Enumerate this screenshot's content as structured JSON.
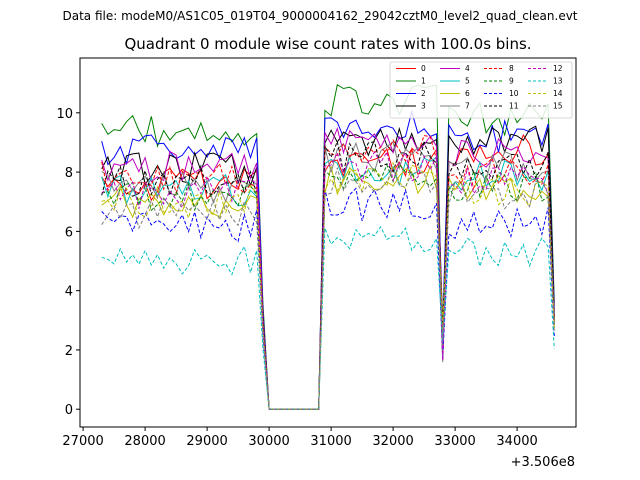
{
  "figure": {
    "suptitle": "Data file: modeM0/AS1C05_019T04_9000004162_29042cztM0_level2_quad_clean.evt"
  },
  "chart_data": {
    "type": "line",
    "title": "Quadrant 0 module wise count rates with 100.0s bins.",
    "xlabel": "",
    "ylabel": "",
    "x_offset_label": "+3.506e8",
    "xlim": [
      26950,
      34950
    ],
    "ylim": [
      -0.6,
      11.85
    ],
    "xticks": [
      27000,
      28000,
      29000,
      30000,
      31000,
      32000,
      33000,
      34000
    ],
    "yticks": [
      0,
      2,
      4,
      6,
      8,
      10
    ],
    "legend_position": "top-right",
    "gti_segments": [
      {
        "start": 27300,
        "end": 29800,
        "step": 100
      },
      {
        "start": 30900,
        "end": 32700,
        "step": 100
      },
      {
        "start": 32900,
        "end": 34500,
        "step": 100
      }
    ],
    "gap_points": [
      {
        "x": 29900,
        "kind": "drop"
      },
      {
        "x": 30000,
        "kind": "zero"
      },
      {
        "x": 30100,
        "kind": "zero"
      },
      {
        "x": 30200,
        "kind": "zero"
      },
      {
        "x": 30300,
        "kind": "zero"
      },
      {
        "x": 30400,
        "kind": "zero"
      },
      {
        "x": 30500,
        "kind": "zero"
      },
      {
        "x": 30600,
        "kind": "zero"
      },
      {
        "x": 30700,
        "kind": "zero"
      },
      {
        "x": 30800,
        "kind": "zero"
      },
      {
        "x": 32800,
        "kind": "dip"
      },
      {
        "x": 34600,
        "kind": "drop"
      }
    ],
    "series": [
      {
        "name": "0",
        "color": "#ff0000",
        "dash": "solid",
        "levels": [
          7.6,
          8.4,
          8.7
        ]
      },
      {
        "name": "1",
        "color": "#008000",
        "dash": "solid",
        "levels": [
          9.4,
          10.4,
          9.8
        ]
      },
      {
        "name": "2",
        "color": "#0000ff",
        "dash": "solid",
        "levels": [
          8.8,
          9.6,
          9.2
        ]
      },
      {
        "name": "3",
        "color": "#000000",
        "dash": "solid",
        "levels": [
          8.1,
          9.1,
          9.0
        ]
      },
      {
        "name": "4",
        "color": "#bf00bf",
        "dash": "solid",
        "levels": [
          8.2,
          9.0,
          8.6
        ]
      },
      {
        "name": "5",
        "color": "#00bfbf",
        "dash": "solid",
        "levels": [
          7.4,
          8.1,
          7.9
        ]
      },
      {
        "name": "6",
        "color": "#bfbf00",
        "dash": "solid",
        "levels": [
          7.0,
          7.8,
          7.4
        ]
      },
      {
        "name": "7",
        "color": "#808080",
        "dash": "solid",
        "levels": [
          7.5,
          8.5,
          8.2
        ]
      },
      {
        "name": "8",
        "color": "#ff0000",
        "dash": "dashed",
        "levels": [
          7.8,
          8.7,
          8.0
        ]
      },
      {
        "name": "9",
        "color": "#008000",
        "dash": "dashed",
        "levels": [
          7.1,
          7.9,
          7.5
        ]
      },
      {
        "name": "10",
        "color": "#0000ff",
        "dash": "dashed",
        "levels": [
          6.2,
          6.9,
          6.3
        ]
      },
      {
        "name": "11",
        "color": "#000000",
        "dash": "dashed",
        "levels": [
          7.7,
          8.5,
          8.2
        ]
      },
      {
        "name": "12",
        "color": "#bf00bf",
        "dash": "dashed",
        "levels": [
          7.3,
          8.2,
          7.7
        ]
      },
      {
        "name": "13",
        "color": "#00bfbf",
        "dash": "dashed",
        "levels": [
          5.0,
          5.8,
          5.3
        ]
      },
      {
        "name": "14",
        "color": "#bfbf00",
        "dash": "dashed",
        "levels": [
          7.0,
          7.8,
          7.3
        ]
      },
      {
        "name": "15",
        "color": "#808080",
        "dash": "dashed",
        "levels": [
          6.6,
          7.6,
          7.2
        ]
      }
    ]
  }
}
